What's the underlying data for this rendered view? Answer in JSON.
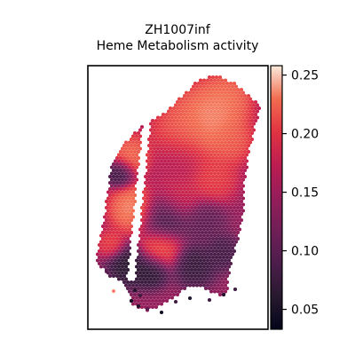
{
  "chart_data": {
    "type": "scatter",
    "subtype": "spatial-hex-spot-map",
    "title_line1": "ZH1007inf",
    "title_line2": "Heme Metabolism activity",
    "xlabel": "",
    "ylabel": "",
    "axis_ticks_visible": false,
    "grid": false,
    "colormap": "rocket",
    "colorbar": {
      "placement": "right",
      "range": [
        0.033,
        0.258
      ],
      "ticks": [
        0.05,
        0.1,
        0.15,
        0.2,
        0.25
      ],
      "tick_labels": [
        "0.05",
        "0.10",
        "0.15",
        "0.20",
        "0.25"
      ]
    }
  }
}
